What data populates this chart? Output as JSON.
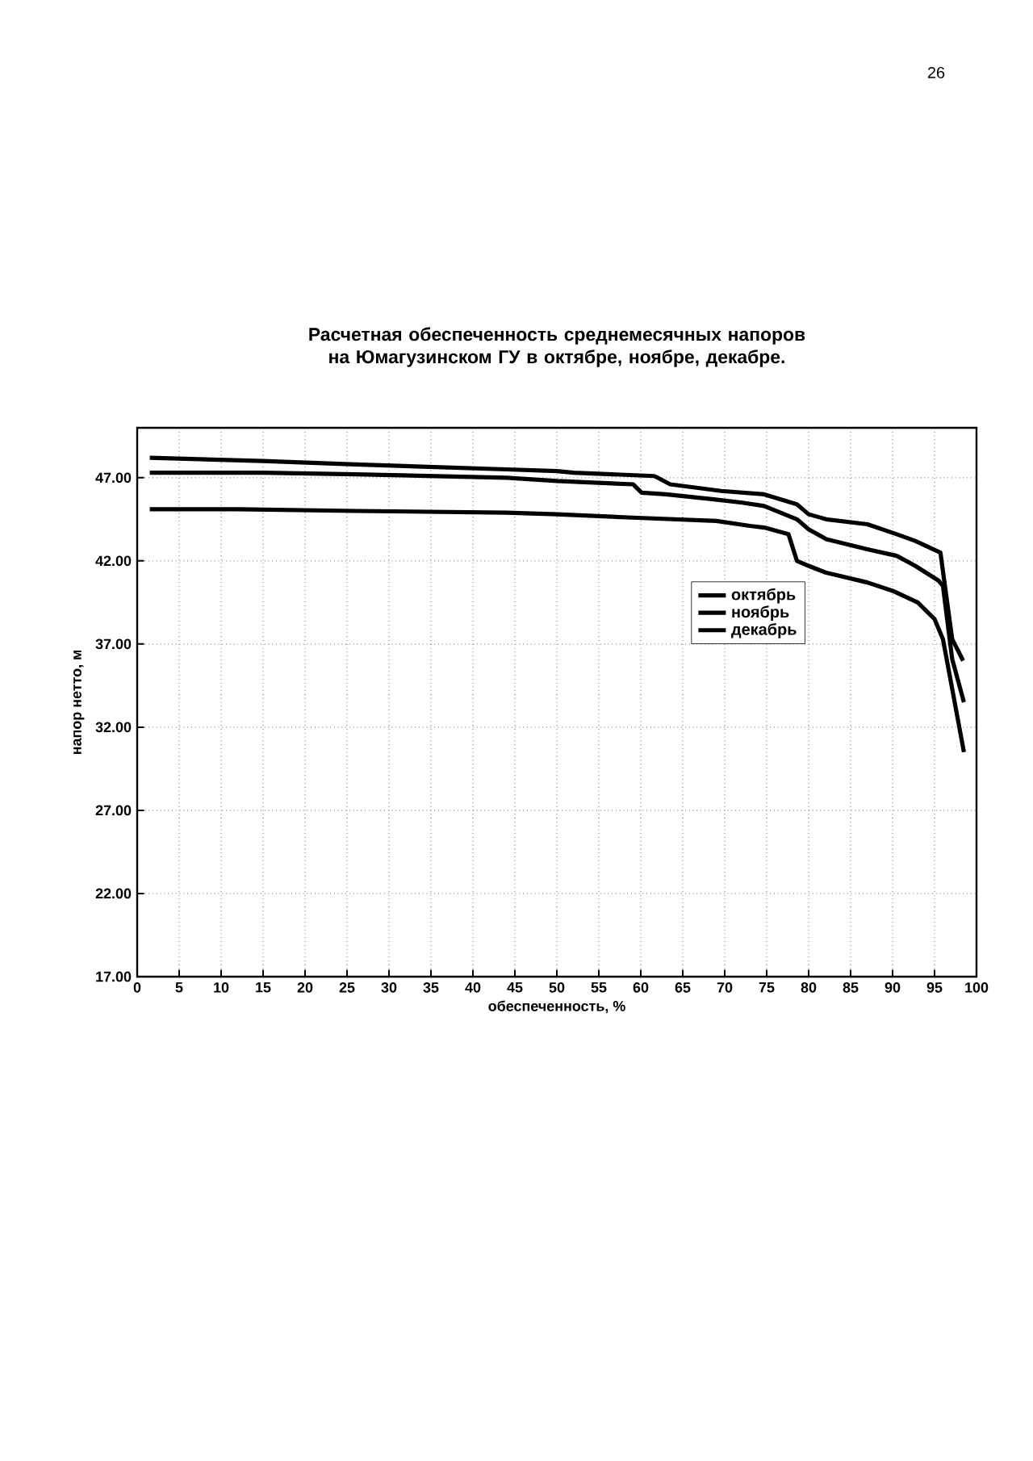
{
  "chart_data": {
    "type": "line",
    "title": "Расчетная обеспеченность среднемесячных напоров на Юмагузинском ГУ в октябре, ноябре, декабре.",
    "xlabel": "обеспеченность, %",
    "ylabel": "напор нетто, м",
    "annotations": [
      "26"
    ],
    "xlim": [
      0,
      100
    ],
    "ylim": [
      17,
      50
    ],
    "xticks": [
      0,
      5,
      10,
      15,
      20,
      25,
      30,
      35,
      40,
      45,
      50,
      55,
      60,
      65,
      70,
      75,
      80,
      85,
      90,
      95,
      100
    ],
    "yticks": [
      {
        "value": 17,
        "label": "17.00"
      },
      {
        "value": 22,
        "label": "22.00"
      },
      {
        "value": 27,
        "label": "27.00"
      },
      {
        "value": 32,
        "label": "32.00"
      },
      {
        "value": 37,
        "label": "37.00"
      },
      {
        "value": 42,
        "label": "42.00"
      },
      {
        "value": 47,
        "label": "47.00"
      }
    ],
    "grid": true,
    "legend": "right",
    "marker": "none",
    "line_style": "solid",
    "series": [
      {
        "name": "октябрь",
        "color": "#000000",
        "x": [
          1.5,
          15,
          26,
          44,
          50,
          52,
          61.6,
          62,
          63.5,
          69.6,
          74.7,
          78.6,
          80,
          82.1,
          87,
          90.5,
          92.7,
          95.7,
          97.1,
          98.4
        ],
        "values": [
          48.2,
          48.0,
          47.8,
          47.5,
          47.4,
          47.3,
          47.1,
          47.0,
          46.6,
          46.2,
          46.0,
          45.4,
          44.8,
          44.5,
          44.2,
          43.6,
          43.2,
          42.5,
          37.3,
          36.0
        ]
      },
      {
        "name": "ноябрь",
        "color": "#000000",
        "x": [
          1.5,
          15,
          26,
          44,
          50,
          59.1,
          60.1,
          63,
          68.7,
          72.1,
          74.7,
          78.6,
          80,
          82.1,
          87,
          90.5,
          92.7,
          95.5,
          96,
          97.1,
          98.5
        ],
        "values": [
          47.3,
          47.3,
          47.2,
          47.0,
          46.8,
          46.6,
          46.1,
          46.0,
          45.7,
          45.5,
          45.3,
          44.5,
          43.9,
          43.3,
          42.7,
          42.3,
          41.7,
          40.8,
          40.5,
          36.1,
          33.5
        ]
      },
      {
        "name": "декабрь",
        "color": "#000000",
        "x": [
          1.5,
          12,
          26,
          44,
          50,
          59,
          69,
          73,
          74.7,
          77.6,
          78.6,
          80,
          82,
          87,
          90,
          93,
          95,
          96,
          98.5
        ],
        "values": [
          45.1,
          45.1,
          45.0,
          44.9,
          44.8,
          44.6,
          44.4,
          44.1,
          44.0,
          43.6,
          42.0,
          41.7,
          41.3,
          40.7,
          40.2,
          39.5,
          38.5,
          37.3,
          30.5
        ]
      }
    ]
  }
}
